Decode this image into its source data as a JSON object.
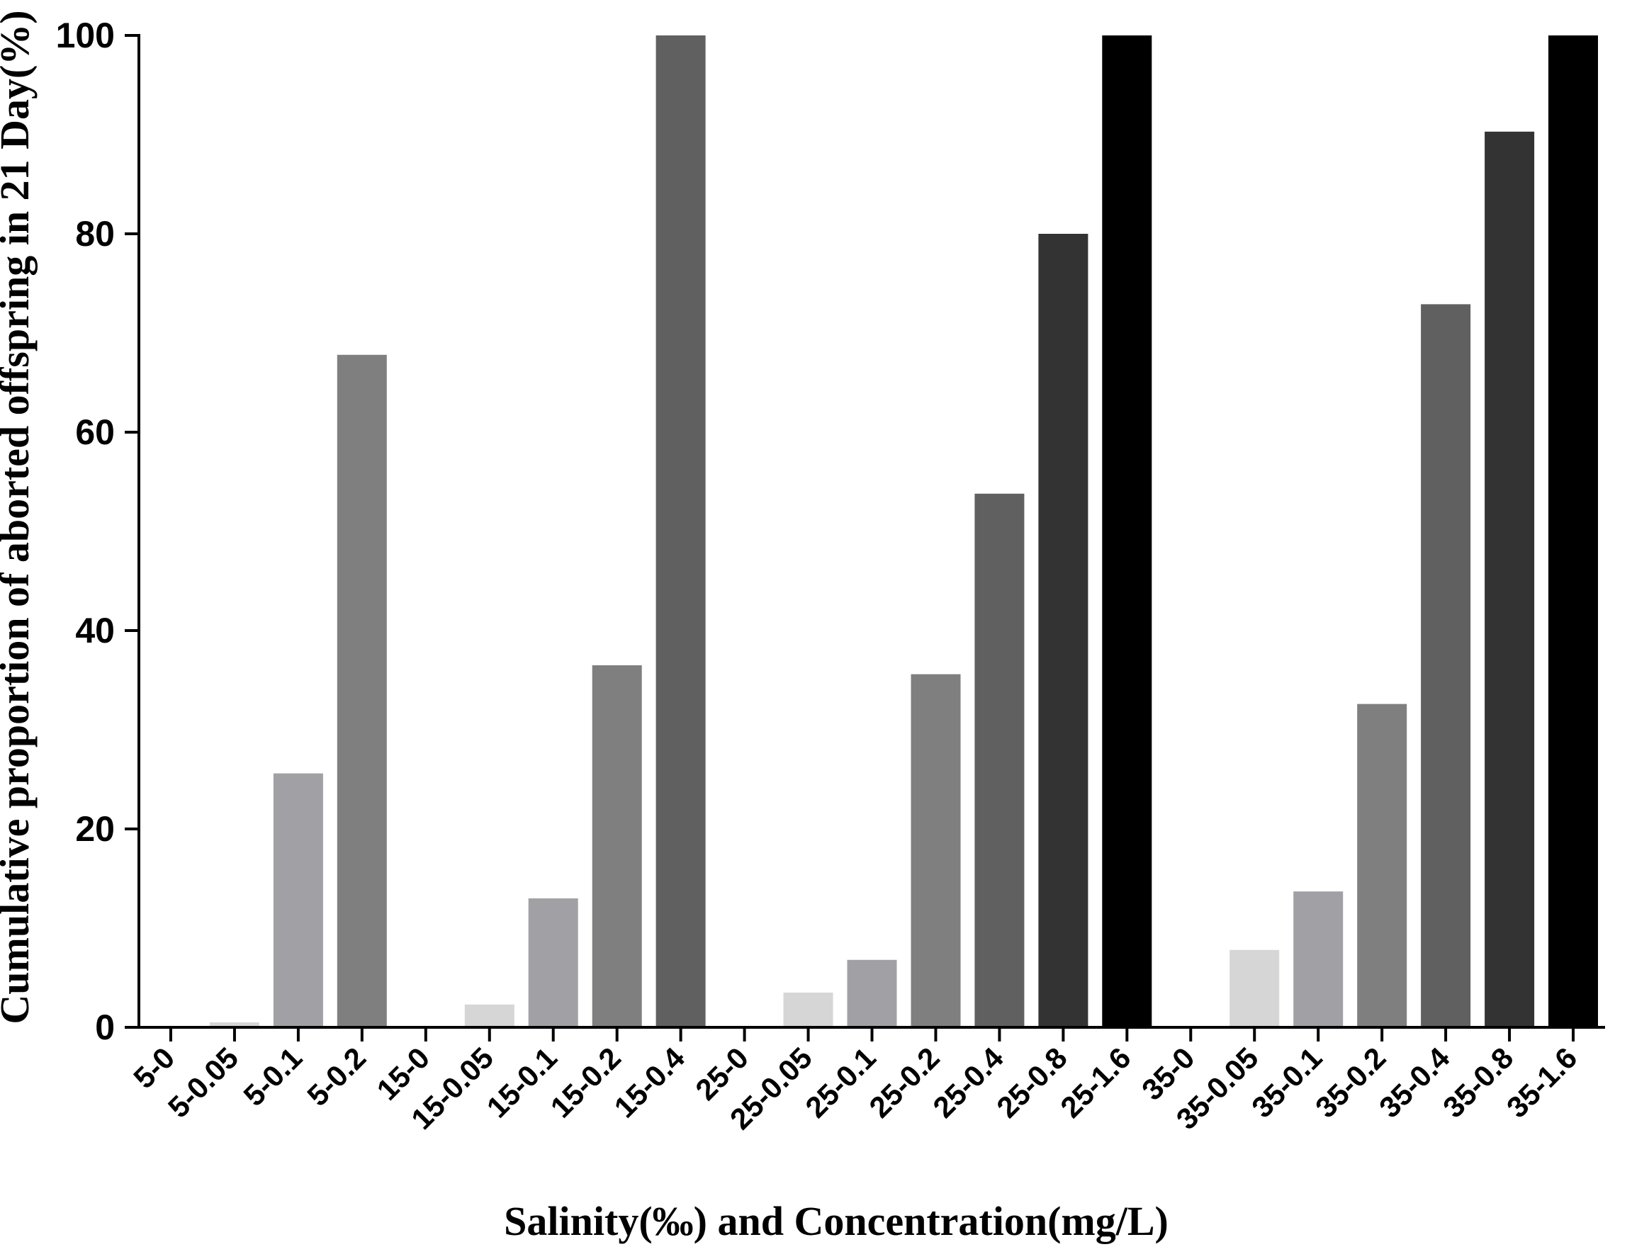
{
  "chart_data": {
    "type": "bar",
    "xlabel": "Salinity(‰) and Concentration(mg/L)",
    "ylabel": "Cumulative proportion of aborted offspring in 21 Day(%)",
    "ylim": [
      0,
      100
    ],
    "yticks": [
      "0",
      "20",
      "40",
      "60",
      "80",
      "100"
    ],
    "grid": false,
    "categories": [
      "5-0",
      "5-0.05",
      "5-0.1",
      "5-0.2",
      "15-0",
      "15-0.05",
      "15-0.1",
      "15-0.2",
      "15-0.4",
      "25-0",
      "25-0.05",
      "25-0.1",
      "25-0.2",
      "25-0.4",
      "25-0.8",
      "25-1.6",
      "35-0",
      "35-0.05",
      "35-0.1",
      "35-0.2",
      "35-0.4",
      "35-0.8",
      "35-1.6"
    ],
    "values": [
      0,
      0.5,
      25.6,
      67.8,
      0,
      2.3,
      13.0,
      36.5,
      100,
      0,
      3.5,
      6.8,
      35.6,
      53.8,
      80.0,
      100,
      0,
      7.8,
      13.7,
      32.6,
      72.9,
      90.3,
      100
    ],
    "bar_colors": [
      "#d6d6d6",
      "#d6d6d6",
      "#a1a1a5",
      "#7f7f7f",
      "#d6d6d6",
      "#d6d6d6",
      "#a1a1a5",
      "#7f7f7f",
      "#606060",
      "#d6d6d6",
      "#d6d6d6",
      "#a1a1a5",
      "#7f7f7f",
      "#606060",
      "#333333",
      "#000000",
      "#d6d6d6",
      "#d6d6d6",
      "#a1a1a5",
      "#7f7f7f",
      "#606060",
      "#333333",
      "#000000"
    ]
  }
}
